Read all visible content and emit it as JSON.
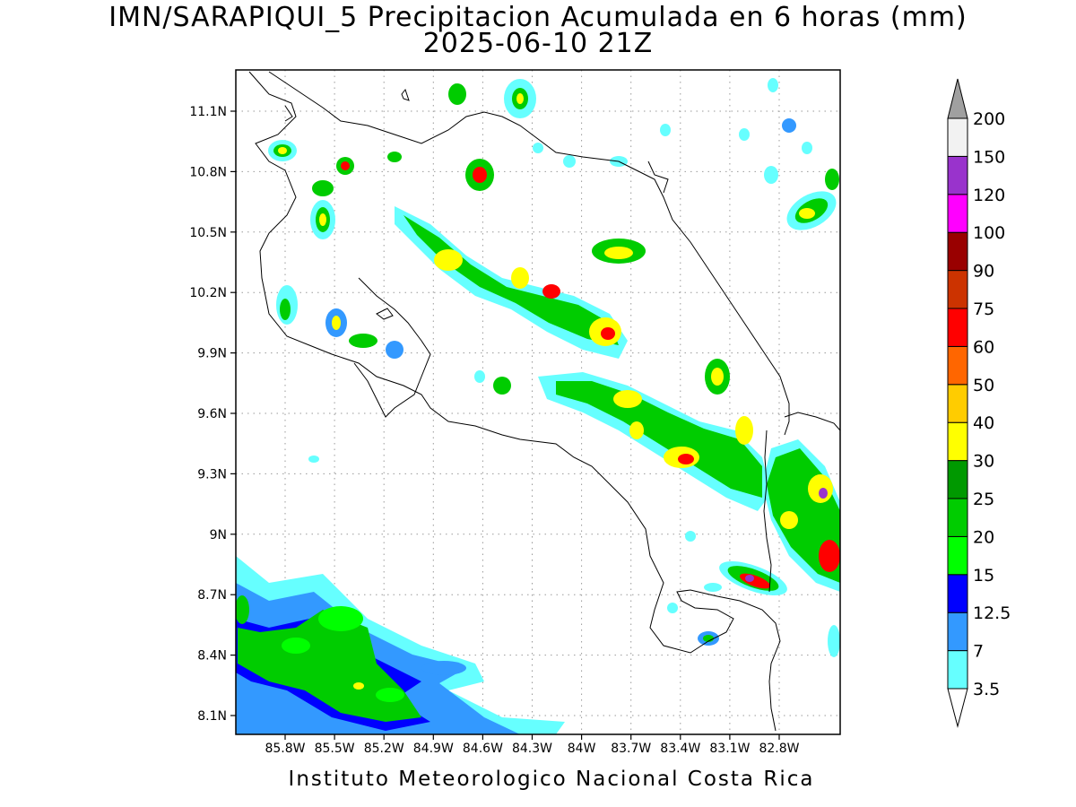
{
  "title_line1": "IMN/SARAPIQUI_5 Precipitacion Acumulada en 6 horas (mm)",
  "title_line2": "2025-06-10 21Z",
  "credit": "Instituto Meteorologico Nacional Costa Rica",
  "map": {
    "lon_range": [
      -86.0,
      -83.0
    ],
    "lat_range": [
      8.0,
      11.3
    ],
    "lat_ticks": [
      "11.1N",
      "10.8N",
      "10.5N",
      "10.2N",
      "9.9N",
      "9.6N",
      "9.3N",
      "9N",
      "8.7N",
      "8.4N",
      "8.1N"
    ],
    "lon_ticks": [
      "85.8W",
      "85.5W",
      "85.2W",
      "84.9W",
      "84.6W",
      "84.3W",
      "84W",
      "83.7W",
      "83.4W",
      "83.1W",
      "82.8W"
    ],
    "grid": "dotted"
  },
  "colorbar": {
    "labels": [
      "3.5",
      "7",
      "12.5",
      "15",
      "20",
      "25",
      "30",
      "40",
      "50",
      "60",
      "75",
      "90",
      "100",
      "120",
      "150",
      "200"
    ],
    "colors": [
      "#66ffff",
      "#3399ff",
      "#0000ff",
      "#00ff00",
      "#00cc00",
      "#009900",
      "#ffff00",
      "#ffcc00",
      "#ff6600",
      "#ff0000",
      "#cc3300",
      "#990000",
      "#ff00ff",
      "#9933cc",
      "#f2f2f2"
    ],
    "top_arrow_color": "#a0a0a0",
    "bottom_arrow_color": "#ffffff"
  }
}
